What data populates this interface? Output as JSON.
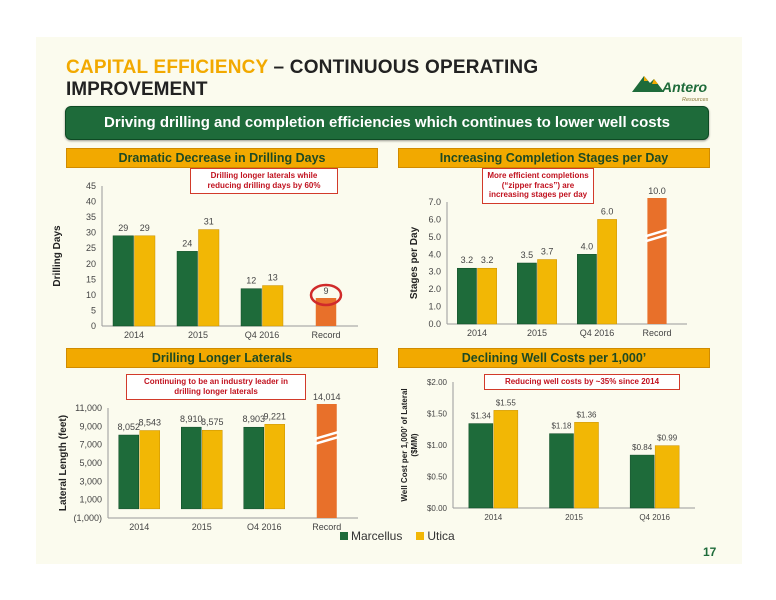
{
  "header": {
    "title_accent": "CAPITAL EFFICIENCY",
    "title_rest": " – CONTINUOUS OPERATING",
    "title_line2": "IMPROVEMENT",
    "logo_text": "Antero",
    "logo_sub": "Resources"
  },
  "banner": "Driving drilling and completion efficiencies which continues to lower well costs",
  "colors": {
    "marcellus": "#1e6b3a",
    "utica": "#f2b705",
    "record": "#e8702a",
    "circle": "#d02a2a"
  },
  "legend": {
    "marcellus": "Marcellus",
    "utica": "Utica"
  },
  "page_number": "17",
  "chart_data": [
    {
      "type": "bar",
      "title": "Dramatic Decrease in Drilling Days",
      "ylabel": "Drilling Days",
      "note": "Drilling longer laterals while reducing drilling days by 60%",
      "categories": [
        "2014",
        "2015",
        "Q4 2016",
        "Record"
      ],
      "ylim": [
        0,
        45
      ],
      "yticks": [
        "0",
        "5",
        "10",
        "15",
        "20",
        "25",
        "30",
        "35",
        "40",
        "45"
      ],
      "series": [
        {
          "name": "Marcellus",
          "values": [
            29,
            24,
            12,
            null
          ],
          "labels": [
            "29",
            "24",
            "12",
            ""
          ]
        },
        {
          "name": "Utica",
          "values": [
            29,
            31,
            13,
            null
          ],
          "labels": [
            "29",
            "31",
            "13",
            ""
          ]
        }
      ],
      "record": {
        "value": 9,
        "label": "9"
      }
    },
    {
      "type": "bar",
      "title": "Increasing Completion Stages per Day",
      "ylabel": "Stages per Day",
      "note": "More efficient completions (“zipper fracs”) are increasing stages per day",
      "categories": [
        "2014",
        "2015",
        "Q4 2016",
        "Record"
      ],
      "ylim": [
        0,
        7
      ],
      "yticks": [
        "0.0",
        "1.0",
        "2.0",
        "3.0",
        "4.0",
        "5.0",
        "6.0",
        "7.0"
      ],
      "series": [
        {
          "name": "Marcellus",
          "values": [
            3.2,
            3.5,
            4.0,
            null
          ],
          "labels": [
            "3.2",
            "3.5",
            "4.0",
            ""
          ]
        },
        {
          "name": "Utica",
          "values": [
            3.2,
            3.7,
            6.0,
            null
          ],
          "labels": [
            "3.2",
            "3.7",
            "6.0",
            ""
          ]
        }
      ],
      "record": {
        "value": 10.0,
        "label": "10.0"
      }
    },
    {
      "type": "bar",
      "title": "Drilling Longer Laterals",
      "ylabel": "Lateral Length (feet)",
      "note": "Continuing to be an industry leader in drilling longer laterals",
      "categories": [
        "2014",
        "2015",
        "Q4 2016",
        "Record"
      ],
      "ylim": [
        -1000,
        11000
      ],
      "yticks": [
        "(1,000)",
        "1,000",
        "3,000",
        "5,000",
        "7,000",
        "9,000",
        "11,000"
      ],
      "series": [
        {
          "name": "Marcellus",
          "values": [
            8052,
            8910,
            8903,
            null
          ],
          "labels": [
            "8,052",
            "8,910",
            "8,903",
            ""
          ]
        },
        {
          "name": "Utica",
          "values": [
            8543,
            8575,
            9221,
            null
          ],
          "labels": [
            "8,543",
            "8,575",
            "9,221",
            ""
          ]
        }
      ],
      "record": {
        "value": 14014,
        "label": "14,014"
      }
    },
    {
      "type": "bar",
      "title": "Declining Well Costs per 1,000’",
      "ylabel": "Well Cost per 1,000’ of Lateral ($MM)",
      "note": "Reducing well costs by ~35% since 2014",
      "categories": [
        "2014",
        "2015",
        "Q4 2016"
      ],
      "ylim": [
        0,
        2
      ],
      "yticks": [
        "$0.00",
        "$0.50",
        "$1.00",
        "$1.50",
        "$2.00"
      ],
      "series": [
        {
          "name": "Marcellus",
          "values": [
            1.34,
            1.18,
            0.84
          ],
          "labels": [
            "$1.34",
            "$1.18",
            "$0.84"
          ]
        },
        {
          "name": "Utica",
          "values": [
            1.55,
            1.36,
            0.99
          ],
          "labels": [
            "$1.55",
            "$1.36",
            "$0.99"
          ]
        }
      ]
    }
  ]
}
